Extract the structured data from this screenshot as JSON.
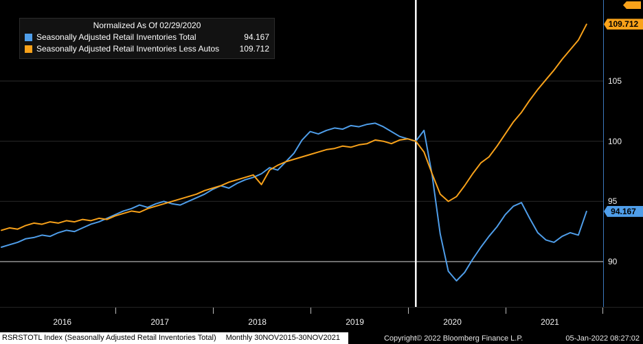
{
  "colors": {
    "blue": "#4f9eea",
    "orange": "#f9a21a",
    "grid": "#2b2b2b",
    "grid_highlight": "#dcdcdc",
    "event_line": "#ffffff",
    "axis_line": "#3c79c0",
    "background": "#000000"
  },
  "legend": {
    "title": "Normalized As Of 02/29/2020",
    "items": [
      {
        "label": "Seasonally Adjusted Retail Inventories Total",
        "value": "94.167",
        "color_key": "blue"
      },
      {
        "label": "Seasonally Adjusted Retail Inventories Less Autos",
        "value": "109.712",
        "color_key": "orange"
      }
    ]
  },
  "y_axis": {
    "ticks": [
      90,
      95,
      100,
      105
    ],
    "badges": [
      {
        "value": "109.712",
        "color_key": "orange"
      },
      {
        "value": "94.167",
        "color_key": "blue"
      }
    ]
  },
  "x_axis": {
    "years": [
      "2016",
      "2017",
      "2018",
      "2019",
      "2020",
      "2021"
    ]
  },
  "footer": {
    "security": "RSRSTOTL Index (Seasonally Adjusted Retail Inventories Total)",
    "periodicity": "Monthly 30NOV2015-30NOV2021",
    "copyright": "Copyright© 2022 Bloomberg Finance L.P.",
    "timestamp": "05-Jan-2022 08:27:02"
  },
  "chart_data": {
    "type": "line",
    "title": "Normalized As Of 02/29/2020",
    "x_start": "2015-11",
    "x_end": "2021-11",
    "frequency": "monthly",
    "normalized_as_of": "02/29/2020",
    "x_tick_labels": [
      "2016",
      "2017",
      "2018",
      "2019",
      "2020",
      "2021"
    ],
    "y_ticks": [
      90,
      95,
      100,
      105
    ],
    "ylim": [
      86,
      111.5
    ],
    "y_gridline_highlight": 90,
    "grid": true,
    "legend_position": "top-left",
    "event_line": {
      "index": 51,
      "date": "02/29/2020"
    },
    "series": [
      {
        "id": "total",
        "name": "Seasonally Adjusted Retail Inventories Total",
        "color_key": "blue",
        "last_value": 94.167,
        "values": [
          91.2,
          91.4,
          91.6,
          91.9,
          92.0,
          92.2,
          92.1,
          92.4,
          92.6,
          92.5,
          92.8,
          93.1,
          93.3,
          93.6,
          93.9,
          94.2,
          94.4,
          94.7,
          94.5,
          94.8,
          95.0,
          94.8,
          94.7,
          95.0,
          95.3,
          95.6,
          96.0,
          96.3,
          96.1,
          96.5,
          96.8,
          97.0,
          97.3,
          97.8,
          97.6,
          98.3,
          99.0,
          100.1,
          100.8,
          100.6,
          100.9,
          101.1,
          101.0,
          101.3,
          101.2,
          101.4,
          101.5,
          101.2,
          100.8,
          100.4,
          100.2,
          100.0,
          100.9,
          97.2,
          92.3,
          89.2,
          88.4,
          89.1,
          90.2,
          91.2,
          92.1,
          92.9,
          93.9,
          94.6,
          94.9,
          93.6,
          92.4,
          91.8,
          91.6,
          92.1,
          92.4,
          92.2,
          94.167
        ]
      },
      {
        "id": "less_autos",
        "name": "Seasonally Adjusted Retail Inventories Less Autos",
        "color_key": "orange",
        "last_value": 109.712,
        "values": [
          92.6,
          92.8,
          92.7,
          93.0,
          93.2,
          93.1,
          93.3,
          93.2,
          93.4,
          93.3,
          93.5,
          93.4,
          93.6,
          93.5,
          93.8,
          94.0,
          94.2,
          94.1,
          94.4,
          94.6,
          94.8,
          95.0,
          95.2,
          95.4,
          95.6,
          95.9,
          96.1,
          96.3,
          96.6,
          96.8,
          97.0,
          97.2,
          96.4,
          97.6,
          98.0,
          98.3,
          98.5,
          98.7,
          98.9,
          99.1,
          99.3,
          99.4,
          99.6,
          99.5,
          99.7,
          99.8,
          100.1,
          100.0,
          99.8,
          100.1,
          100.2,
          100.0,
          99.1,
          97.3,
          95.6,
          95.0,
          95.4,
          96.3,
          97.3,
          98.2,
          98.7,
          99.6,
          100.6,
          101.6,
          102.4,
          103.4,
          104.3,
          105.1,
          105.9,
          106.8,
          107.6,
          108.4,
          109.712
        ]
      }
    ]
  }
}
